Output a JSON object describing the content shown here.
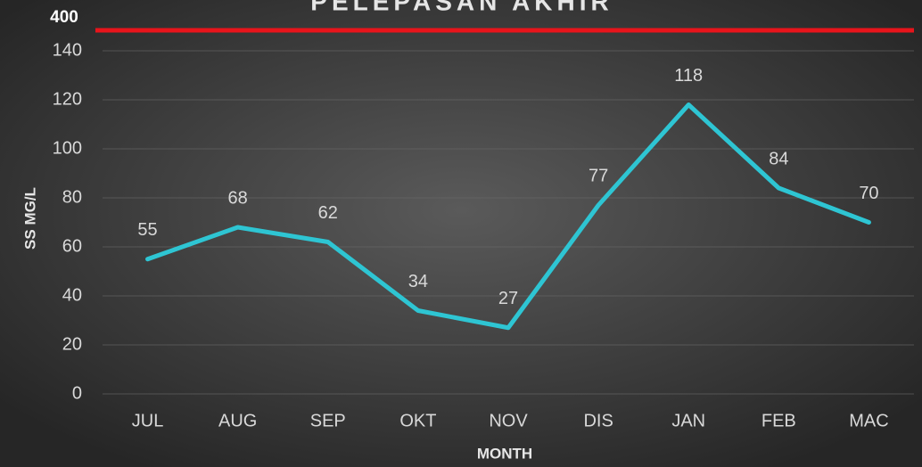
{
  "chart_data": {
    "type": "line",
    "title": "PELEPASAN AKHIR",
    "categories": [
      "JUL",
      "AUG",
      "SEP",
      "OKT",
      "NOV",
      "DIS",
      "JAN",
      "FEB",
      "MAC"
    ],
    "series": [
      {
        "name": "SS",
        "color": "#2ec5d3",
        "values": [
          55,
          68,
          62,
          34,
          27,
          77,
          118,
          84,
          70
        ]
      }
    ],
    "ylim": [
      0,
      140
    ],
    "yticks": [
      0,
      20,
      40,
      60,
      80,
      100,
      120,
      140
    ],
    "grid": true,
    "y_label": "SS MG/L",
    "x_label": "MONTH",
    "limit_label": "400",
    "limit_color": "#e8141b",
    "data_labels": true
  }
}
